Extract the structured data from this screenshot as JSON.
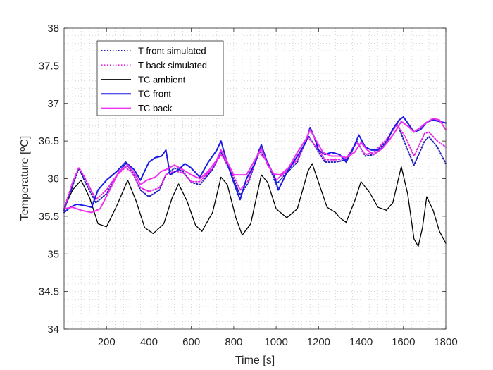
{
  "chart_data": {
    "type": "line",
    "title": "",
    "xlabel": "Time [s]",
    "ylabel": "Temperature [ºC]",
    "xlim": [
      0,
      1800
    ],
    "ylim": [
      34,
      38
    ],
    "xticks": [
      200,
      400,
      600,
      800,
      1000,
      1200,
      1400,
      1600,
      1800
    ],
    "yticks": [
      34,
      34.5,
      35,
      35.5,
      36,
      36.5,
      37,
      37.5,
      38
    ],
    "xtick_labels": [
      "200",
      "400",
      "600",
      "800",
      "1000",
      "1200",
      "1400",
      "1600",
      "1800"
    ],
    "ytick_labels": [
      "34",
      "34.5",
      "35",
      "35.5",
      "36",
      "36.5",
      "37",
      "37.5",
      "38"
    ],
    "grid": true,
    "legend_position": "top-left",
    "series": [
      {
        "name": "T front simulated",
        "color": "#1f1fbf",
        "style": "dotted",
        "points": [
          [
            0,
            35.58
          ],
          [
            40,
            35.9
          ],
          [
            70,
            36.14
          ],
          [
            100,
            35.95
          ],
          [
            150,
            35.68
          ],
          [
            200,
            35.8
          ],
          [
            250,
            36.05
          ],
          [
            290,
            36.2
          ],
          [
            320,
            36.1
          ],
          [
            360,
            35.85
          ],
          [
            400,
            35.76
          ],
          [
            450,
            35.85
          ],
          [
            480,
            36.05
          ],
          [
            520,
            36.14
          ],
          [
            560,
            36.1
          ],
          [
            600,
            35.95
          ],
          [
            640,
            35.92
          ],
          [
            700,
            36.12
          ],
          [
            740,
            36.35
          ],
          [
            780,
            36.12
          ],
          [
            830,
            35.78
          ],
          [
            870,
            35.95
          ],
          [
            920,
            36.38
          ],
          [
            960,
            36.22
          ],
          [
            1000,
            35.92
          ],
          [
            1040,
            36.05
          ],
          [
            1100,
            36.22
          ],
          [
            1150,
            36.58
          ],
          [
            1190,
            36.4
          ],
          [
            1230,
            36.22
          ],
          [
            1280,
            36.22
          ],
          [
            1330,
            36.25
          ],
          [
            1380,
            36.5
          ],
          [
            1420,
            36.3
          ],
          [
            1460,
            36.32
          ],
          [
            1520,
            36.5
          ],
          [
            1570,
            36.74
          ],
          [
            1610,
            36.45
          ],
          [
            1650,
            36.18
          ],
          [
            1700,
            36.5
          ],
          [
            1720,
            36.56
          ],
          [
            1760,
            36.42
          ],
          [
            1800,
            36.2
          ]
        ]
      },
      {
        "name": "T back simulated",
        "color": "#e620e6",
        "style": "dotted",
        "points": [
          [
            0,
            35.6
          ],
          [
            40,
            35.95
          ],
          [
            70,
            36.15
          ],
          [
            100,
            36.0
          ],
          [
            150,
            35.72
          ],
          [
            200,
            35.85
          ],
          [
            250,
            36.05
          ],
          [
            290,
            36.15
          ],
          [
            320,
            36.08
          ],
          [
            360,
            35.88
          ],
          [
            400,
            35.83
          ],
          [
            450,
            35.88
          ],
          [
            480,
            36.05
          ],
          [
            520,
            36.1
          ],
          [
            560,
            36.08
          ],
          [
            600,
            35.96
          ],
          [
            640,
            35.96
          ],
          [
            700,
            36.14
          ],
          [
            740,
            36.32
          ],
          [
            780,
            36.15
          ],
          [
            830,
            35.85
          ],
          [
            870,
            35.98
          ],
          [
            920,
            36.35
          ],
          [
            960,
            36.22
          ],
          [
            1000,
            35.98
          ],
          [
            1040,
            36.08
          ],
          [
            1100,
            36.25
          ],
          [
            1150,
            36.55
          ],
          [
            1190,
            36.42
          ],
          [
            1230,
            36.25
          ],
          [
            1280,
            36.25
          ],
          [
            1330,
            36.27
          ],
          [
            1380,
            36.48
          ],
          [
            1420,
            36.32
          ],
          [
            1460,
            36.35
          ],
          [
            1520,
            36.52
          ],
          [
            1570,
            36.72
          ],
          [
            1610,
            36.55
          ],
          [
            1650,
            36.3
          ],
          [
            1700,
            36.6
          ],
          [
            1720,
            36.62
          ],
          [
            1760,
            36.5
          ],
          [
            1800,
            36.42
          ]
        ]
      },
      {
        "name": "TC ambient",
        "color": "#000000",
        "style": "solid",
        "points": [
          [
            0,
            35.6
          ],
          [
            40,
            35.85
          ],
          [
            80,
            35.98
          ],
          [
            120,
            35.75
          ],
          [
            160,
            35.4
          ],
          [
            200,
            35.36
          ],
          [
            250,
            35.65
          ],
          [
            300,
            35.98
          ],
          [
            340,
            35.7
          ],
          [
            380,
            35.35
          ],
          [
            420,
            35.27
          ],
          [
            470,
            35.4
          ],
          [
            510,
            35.75
          ],
          [
            540,
            35.93
          ],
          [
            580,
            35.7
          ],
          [
            620,
            35.38
          ],
          [
            650,
            35.3
          ],
          [
            700,
            35.55
          ],
          [
            740,
            36.02
          ],
          [
            770,
            35.92
          ],
          [
            810,
            35.48
          ],
          [
            840,
            35.25
          ],
          [
            880,
            35.4
          ],
          [
            930,
            36.05
          ],
          [
            960,
            35.95
          ],
          [
            1000,
            35.6
          ],
          [
            1050,
            35.48
          ],
          [
            1100,
            35.6
          ],
          [
            1150,
            36.1
          ],
          [
            1170,
            36.2
          ],
          [
            1200,
            35.95
          ],
          [
            1240,
            35.62
          ],
          [
            1280,
            35.55
          ],
          [
            1300,
            35.48
          ],
          [
            1330,
            35.42
          ],
          [
            1370,
            35.7
          ],
          [
            1400,
            35.96
          ],
          [
            1440,
            35.82
          ],
          [
            1480,
            35.62
          ],
          [
            1520,
            35.58
          ],
          [
            1550,
            35.68
          ],
          [
            1590,
            36.16
          ],
          [
            1620,
            35.8
          ],
          [
            1650,
            35.2
          ],
          [
            1670,
            35.1
          ],
          [
            1690,
            35.35
          ],
          [
            1710,
            35.76
          ],
          [
            1740,
            35.58
          ],
          [
            1770,
            35.3
          ],
          [
            1800,
            35.14
          ]
        ]
      },
      {
        "name": "TC front",
        "color": "#1a1ae6",
        "style": "solid",
        "points": [
          [
            0,
            35.55
          ],
          [
            30,
            35.62
          ],
          [
            60,
            35.66
          ],
          [
            100,
            35.64
          ],
          [
            130,
            35.62
          ],
          [
            160,
            35.85
          ],
          [
            200,
            35.98
          ],
          [
            250,
            36.1
          ],
          [
            290,
            36.22
          ],
          [
            330,
            36.12
          ],
          [
            360,
            35.98
          ],
          [
            400,
            36.22
          ],
          [
            430,
            36.28
          ],
          [
            460,
            36.3
          ],
          [
            480,
            36.38
          ],
          [
            500,
            36.05
          ],
          [
            540,
            36.12
          ],
          [
            570,
            36.2
          ],
          [
            600,
            36.14
          ],
          [
            640,
            36.02
          ],
          [
            680,
            36.22
          ],
          [
            720,
            36.38
          ],
          [
            740,
            36.5
          ],
          [
            770,
            36.2
          ],
          [
            800,
            35.95
          ],
          [
            830,
            35.72
          ],
          [
            860,
            36.0
          ],
          [
            900,
            36.2
          ],
          [
            930,
            36.45
          ],
          [
            960,
            36.2
          ],
          [
            990,
            36.05
          ],
          [
            1010,
            35.85
          ],
          [
            1050,
            36.08
          ],
          [
            1100,
            36.3
          ],
          [
            1140,
            36.48
          ],
          [
            1160,
            36.68
          ],
          [
            1180,
            36.55
          ],
          [
            1200,
            36.38
          ],
          [
            1230,
            36.32
          ],
          [
            1260,
            36.35
          ],
          [
            1300,
            36.32
          ],
          [
            1330,
            36.22
          ],
          [
            1360,
            36.38
          ],
          [
            1390,
            36.58
          ],
          [
            1420,
            36.42
          ],
          [
            1450,
            36.38
          ],
          [
            1490,
            36.38
          ],
          [
            1520,
            36.48
          ],
          [
            1550,
            36.66
          ],
          [
            1580,
            36.78
          ],
          [
            1600,
            36.82
          ],
          [
            1620,
            36.74
          ],
          [
            1650,
            36.62
          ],
          [
            1680,
            36.65
          ],
          [
            1710,
            36.75
          ],
          [
            1740,
            36.78
          ],
          [
            1770,
            36.76
          ],
          [
            1800,
            36.74
          ]
        ]
      },
      {
        "name": "TC back",
        "color": "#f030f0",
        "style": "solid",
        "points": [
          [
            0,
            35.6
          ],
          [
            40,
            35.62
          ],
          [
            80,
            35.58
          ],
          [
            130,
            35.55
          ],
          [
            170,
            35.6
          ],
          [
            210,
            35.82
          ],
          [
            260,
            36.1
          ],
          [
            300,
            36.18
          ],
          [
            330,
            36.08
          ],
          [
            360,
            35.92
          ],
          [
            390,
            35.98
          ],
          [
            430,
            36.02
          ],
          [
            460,
            36.1
          ],
          [
            480,
            36.12
          ],
          [
            520,
            36.18
          ],
          [
            560,
            36.12
          ],
          [
            600,
            36.05
          ],
          [
            640,
            36.0
          ],
          [
            680,
            36.1
          ],
          [
            720,
            36.25
          ],
          [
            740,
            36.38
          ],
          [
            770,
            36.22
          ],
          [
            800,
            36.05
          ],
          [
            830,
            36.05
          ],
          [
            860,
            36.05
          ],
          [
            900,
            36.25
          ],
          [
            930,
            36.4
          ],
          [
            960,
            36.18
          ],
          [
            990,
            36.06
          ],
          [
            1020,
            36.05
          ],
          [
            1060,
            36.15
          ],
          [
            1100,
            36.35
          ],
          [
            1140,
            36.52
          ],
          [
            1160,
            36.65
          ],
          [
            1190,
            36.5
          ],
          [
            1220,
            36.35
          ],
          [
            1260,
            36.3
          ],
          [
            1300,
            36.3
          ],
          [
            1330,
            36.28
          ],
          [
            1370,
            36.35
          ],
          [
            1400,
            36.48
          ],
          [
            1430,
            36.38
          ],
          [
            1460,
            36.32
          ],
          [
            1500,
            36.4
          ],
          [
            1530,
            36.5
          ],
          [
            1560,
            36.62
          ],
          [
            1590,
            36.76
          ],
          [
            1620,
            36.7
          ],
          [
            1650,
            36.62
          ],
          [
            1680,
            36.68
          ],
          [
            1710,
            36.75
          ],
          [
            1740,
            36.8
          ],
          [
            1770,
            36.78
          ],
          [
            1800,
            36.65
          ]
        ]
      }
    ]
  }
}
